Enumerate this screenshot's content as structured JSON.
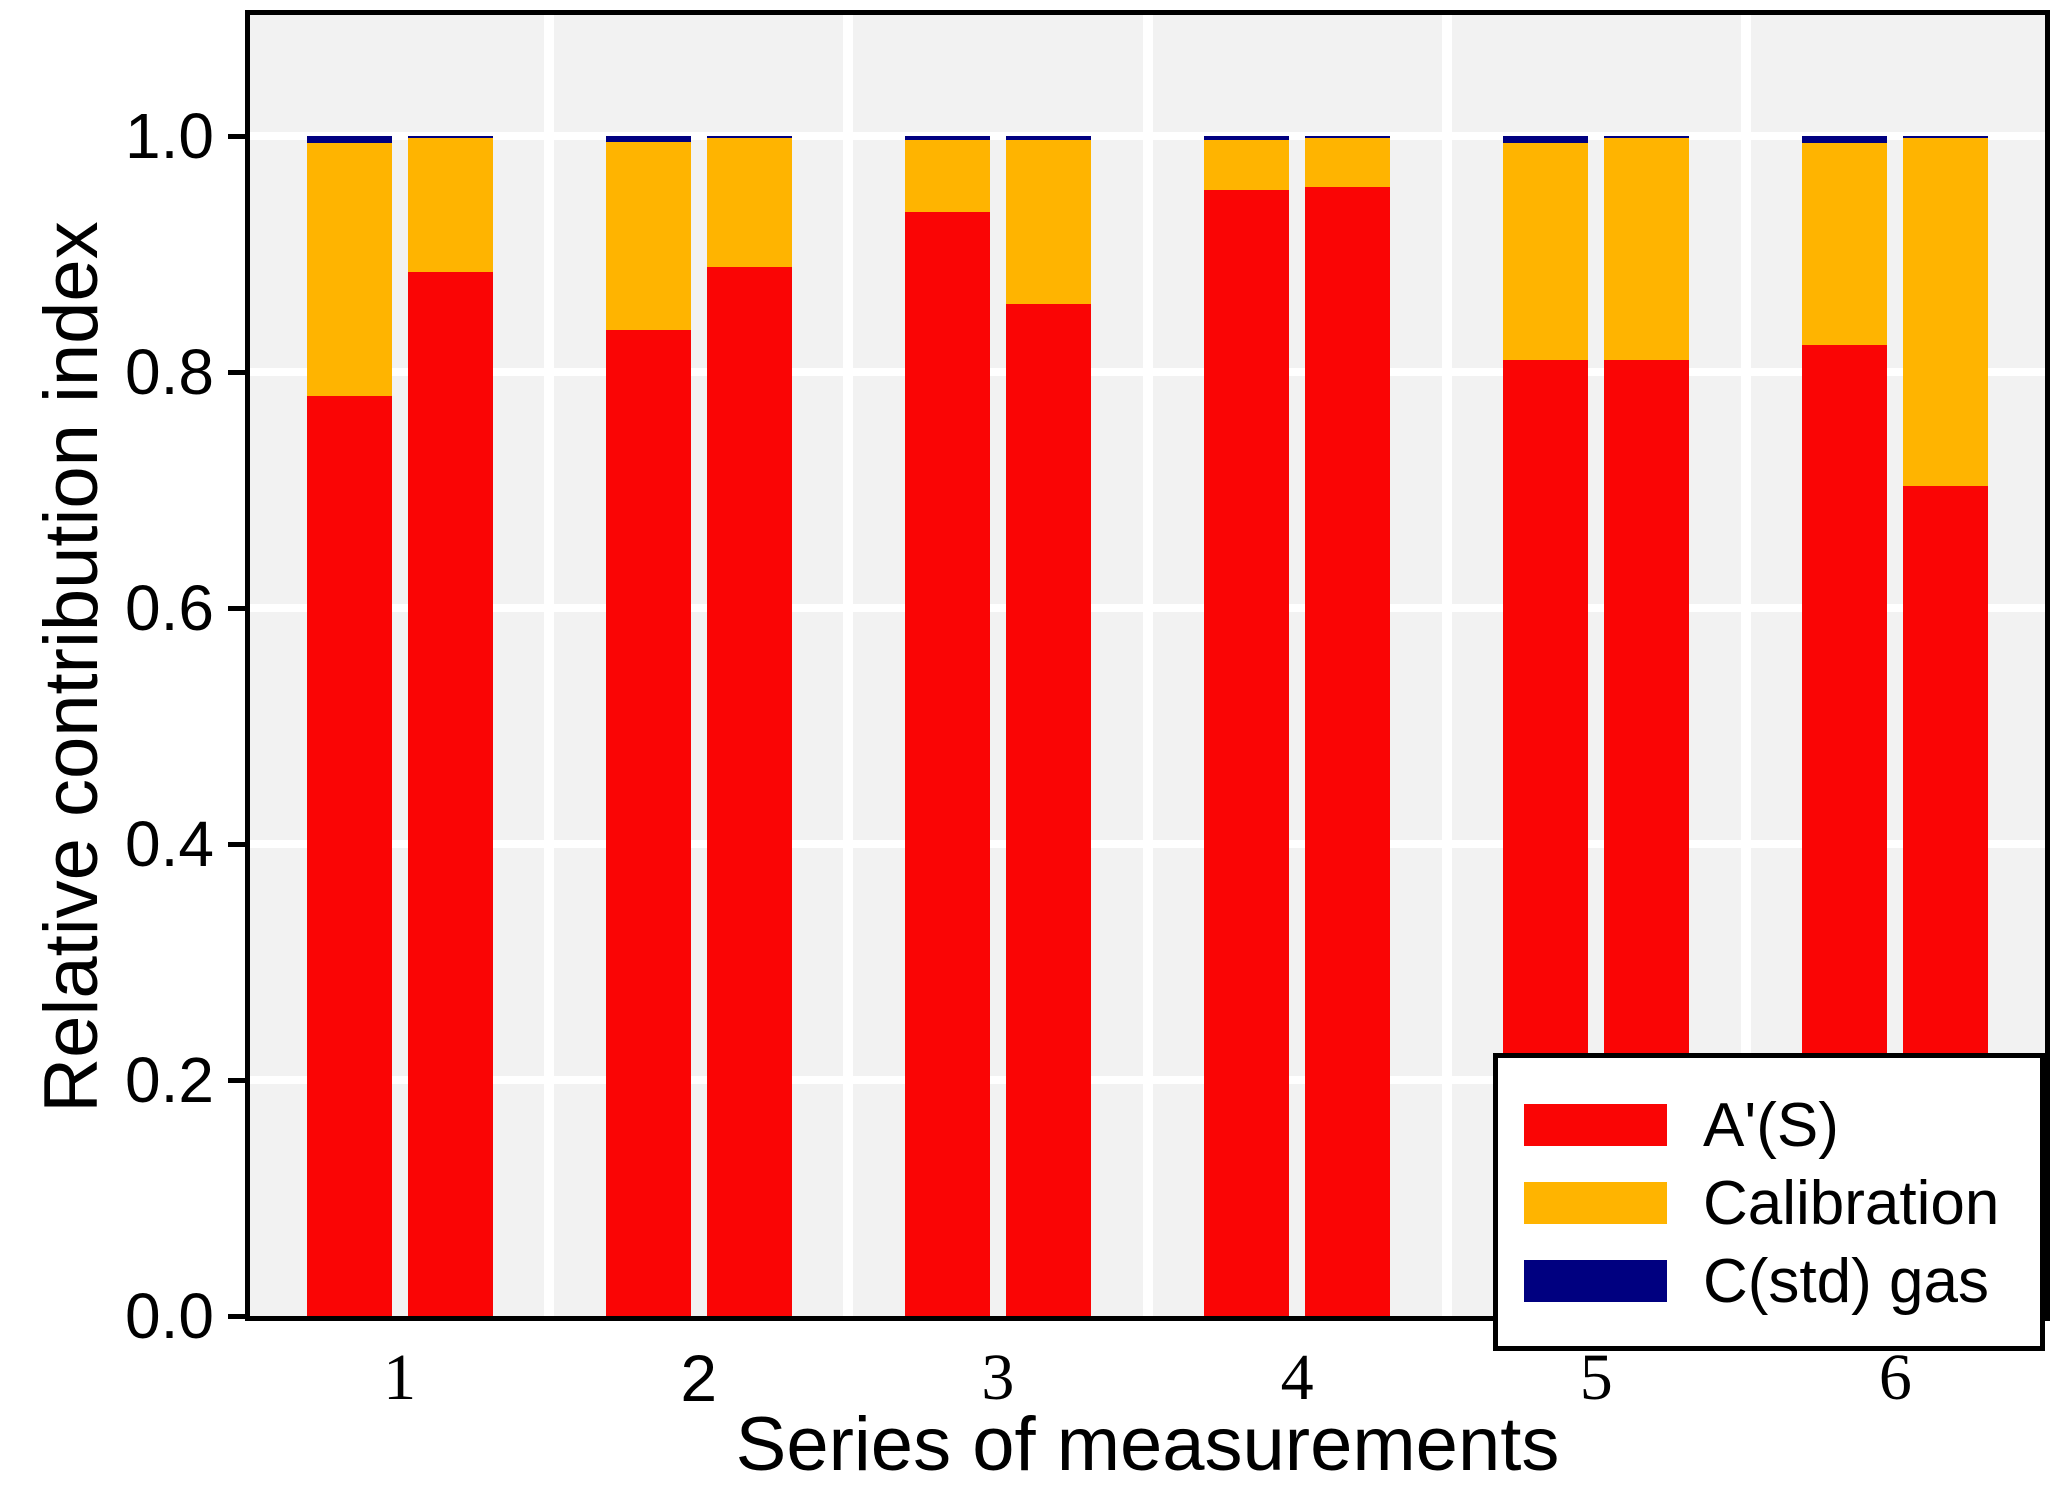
{
  "figure": {
    "background": "#ffffff",
    "plot_background": "#f2f2f2",
    "gridline_color": "#ffffff",
    "frame_color": "#000000"
  },
  "chart_data": {
    "type": "bar",
    "stacked": true,
    "title": "",
    "xlabel": "Series of measurements",
    "ylabel": "Relative contribution index",
    "categories": [
      "1",
      "2",
      "3",
      "4",
      "5",
      "6"
    ],
    "x_tick_variants": [
      "serif",
      "sans",
      "serif",
      "serif",
      "serif",
      "serif"
    ],
    "bars_per_category": 2,
    "ylim": [
      0,
      1.1
    ],
    "y_ticks": [
      "0.0",
      "0.2",
      "0.4",
      "0.6",
      "0.8",
      "1.0"
    ],
    "grid": "on",
    "legend_position": "lower right",
    "series": [
      {
        "name": "A'(S)",
        "color": "#fa0505",
        "values": [
          [
            0.78,
            0.885
          ],
          [
            0.836,
            0.889
          ],
          [
            0.936,
            0.858
          ],
          [
            0.954,
            0.957
          ],
          [
            0.81,
            0.81
          ],
          [
            0.823,
            0.703
          ]
        ]
      },
      {
        "name": "Calibration",
        "color": "#ffb400",
        "values": [
          [
            0.214,
            0.113
          ],
          [
            0.159,
            0.109
          ],
          [
            0.061,
            0.139
          ],
          [
            0.043,
            0.041
          ],
          [
            0.184,
            0.188
          ],
          [
            0.171,
            0.295
          ]
        ]
      },
      {
        "name": "C(std) gas",
        "color": "#000080",
        "values": [
          [
            0.006,
            0.002
          ],
          [
            0.005,
            0.002
          ],
          [
            0.003,
            0.003
          ],
          [
            0.003,
            0.002
          ],
          [
            0.006,
            0.002
          ],
          [
            0.006,
            0.002
          ]
        ]
      }
    ]
  }
}
